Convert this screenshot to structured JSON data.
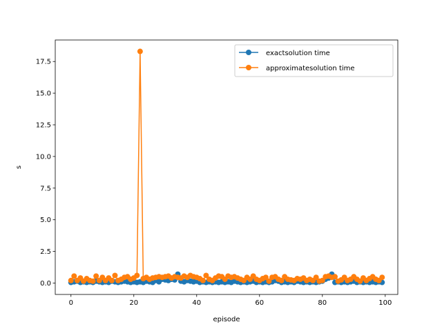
{
  "chart_data": {
    "type": "line",
    "xlabel": "episode",
    "ylabel": "s",
    "xlim": [
      -5,
      104
    ],
    "ylim": [
      -0.9,
      19.2
    ],
    "x_ticks": [
      0,
      20,
      40,
      60,
      80,
      100
    ],
    "x_tick_labels": [
      "0",
      "20",
      "40",
      "60",
      "80",
      "100"
    ],
    "y_ticks": [
      0.0,
      2.5,
      5.0,
      7.5,
      10.0,
      12.5,
      15.0,
      17.5
    ],
    "y_tick_labels": [
      "0.0",
      "2.5",
      "5.0",
      "7.5",
      "10.0",
      "12.5",
      "15.0",
      "17.5"
    ],
    "grid": false,
    "legend_position": "upper right",
    "markers": true,
    "x": [
      0,
      1,
      2,
      3,
      4,
      5,
      6,
      7,
      8,
      9,
      10,
      11,
      12,
      13,
      14,
      15,
      16,
      17,
      18,
      19,
      20,
      21,
      22,
      23,
      24,
      25,
      26,
      27,
      28,
      29,
      30,
      31,
      32,
      33,
      34,
      35,
      36,
      37,
      38,
      39,
      40,
      41,
      42,
      43,
      44,
      45,
      46,
      47,
      48,
      49,
      50,
      51,
      52,
      53,
      54,
      55,
      56,
      57,
      58,
      59,
      60,
      61,
      62,
      63,
      64,
      65,
      66,
      67,
      68,
      69,
      70,
      71,
      72,
      73,
      74,
      75,
      76,
      77,
      78,
      79,
      80,
      81,
      82,
      83,
      84,
      85,
      86,
      87,
      88,
      89,
      90,
      91,
      92,
      93,
      94,
      95,
      96,
      97,
      98,
      99
    ],
    "series": [
      {
        "name": "exactsolution time",
        "color": "#1f77b4",
        "values": [
          0.05,
          0.1,
          0.15,
          0.05,
          0.1,
          0.05,
          0.1,
          0.05,
          0.15,
          0.1,
          0.05,
          0.1,
          0.05,
          0.15,
          0.1,
          0.05,
          0.1,
          0.15,
          0.1,
          0.05,
          0.1,
          0.05,
          0.1,
          0.05,
          0.15,
          0.1,
          0.05,
          0.2,
          0.1,
          0.3,
          0.25,
          0.2,
          0.3,
          0.25,
          0.7,
          0.15,
          0.1,
          0.2,
          0.15,
          0.1,
          0.15,
          0.05,
          0.1,
          0.05,
          0.1,
          0.05,
          0.1,
          0.05,
          0.1,
          0.05,
          0.1,
          0.05,
          0.15,
          0.1,
          0.05,
          0.1,
          0.05,
          0.1,
          0.15,
          0.05,
          0.1,
          0.05,
          0.1,
          0.05,
          0.1,
          0.2,
          0.15,
          0.05,
          0.1,
          0.05,
          0.1,
          0.05,
          0.15,
          0.1,
          0.05,
          0.1,
          0.05,
          0.1,
          0.05,
          0.1,
          0.15,
          0.3,
          0.4,
          0.7,
          0.05,
          0.1,
          0.05,
          0.1,
          0.05,
          0.1,
          0.15,
          0.05,
          0.1,
          0.05,
          0.1,
          0.05,
          0.1,
          0.05,
          0.1,
          0.05
        ]
      },
      {
        "name": "approximatesolution time",
        "color": "#ff7f0e",
        "values": [
          0.2,
          0.55,
          0.2,
          0.4,
          0.15,
          0.35,
          0.2,
          0.15,
          0.55,
          0.2,
          0.45,
          0.2,
          0.4,
          0.2,
          0.6,
          0.2,
          0.3,
          0.45,
          0.5,
          0.3,
          0.4,
          0.6,
          18.3,
          0.35,
          0.45,
          0.3,
          0.4,
          0.45,
          0.5,
          0.45,
          0.5,
          0.55,
          0.4,
          0.5,
          0.45,
          0.4,
          0.55,
          0.45,
          0.6,
          0.5,
          0.45,
          0.35,
          0.2,
          0.6,
          0.3,
          0.2,
          0.4,
          0.55,
          0.5,
          0.3,
          0.55,
          0.45,
          0.5,
          0.4,
          0.3,
          0.2,
          0.45,
          0.3,
          0.55,
          0.3,
          0.2,
          0.35,
          0.45,
          0.15,
          0.45,
          0.5,
          0.3,
          0.2,
          0.5,
          0.3,
          0.25,
          0.2,
          0.35,
          0.3,
          0.4,
          0.2,
          0.3,
          0.2,
          0.45,
          0.15,
          0.2,
          0.5,
          0.55,
          0.45,
          0.5,
          0.15,
          0.25,
          0.45,
          0.2,
          0.3,
          0.5,
          0.3,
          0.15,
          0.4,
          0.2,
          0.35,
          0.5,
          0.3,
          0.2,
          0.45
        ]
      }
    ]
  }
}
